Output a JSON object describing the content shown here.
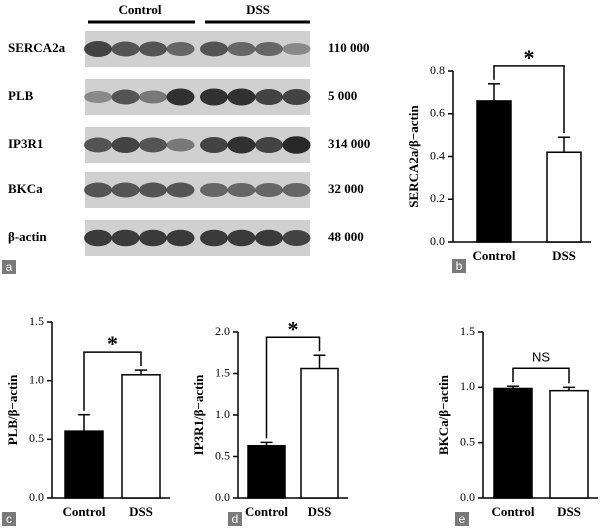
{
  "blot": {
    "panel": "a",
    "groups": [
      "Control",
      "DSS"
    ],
    "rows": [
      {
        "label": "SERCA2a",
        "weight": "110 000"
      },
      {
        "label": "PLB",
        "weight": "5 000"
      },
      {
        "label": "IP3R1",
        "weight": "314 000"
      },
      {
        "label": "BKCa",
        "weight": "32 000"
      },
      {
        "label": "β-actin",
        "weight": "48 000"
      }
    ]
  },
  "chart_data": [
    {
      "type": "bar",
      "panel": "b",
      "ylabel": "SERCA2a/β−actin",
      "annotation": "*",
      "categories": [
        "Control",
        "DSS"
      ],
      "values": [
        0.66,
        0.42
      ],
      "errors": [
        0.08,
        0.07
      ],
      "colors": [
        "#000000",
        "#ffffff"
      ],
      "ylim": [
        0,
        0.8
      ],
      "yticks": [
        {
          "value": 0,
          "label": "0.0"
        },
        0.2,
        0.4,
        0.6,
        0.8
      ]
    },
    {
      "type": "bar",
      "panel": "c",
      "ylabel": "PLB/β−actin",
      "annotation": "*",
      "categories": [
        "Control",
        "DSS"
      ],
      "values": [
        0.57,
        1.05
      ],
      "errors": [
        0.14,
        0.04
      ],
      "colors": [
        "#000000",
        "#ffffff"
      ],
      "ylim": [
        0,
        1.5
      ],
      "yticks": [
        {
          "value": 0,
          "label": "0.0"
        },
        0.5,
        {
          "value": 1,
          "label": "1.0"
        },
        1.5
      ]
    },
    {
      "type": "bar",
      "panel": "d",
      "ylabel": "IP3R1/β−actin",
      "annotation": "*",
      "categories": [
        "Control",
        "DSS"
      ],
      "values": [
        0.63,
        1.56
      ],
      "errors": [
        0.04,
        0.16
      ],
      "colors": [
        "#000000",
        "#ffffff"
      ],
      "ylim": [
        0,
        2
      ],
      "yticks": [
        {
          "value": 0,
          "label": "0.0"
        },
        0.5,
        {
          "value": 1,
          "label": "1.0"
        },
        1.5,
        {
          "value": 2,
          "label": "2.0"
        }
      ]
    },
    {
      "type": "bar",
      "panel": "e",
      "ylabel": "BKCa/β−actin",
      "annotation": "NS",
      "categories": [
        "Control",
        "DSS"
      ],
      "values": [
        0.99,
        0.97
      ],
      "errors": [
        0.02,
        0.03
      ],
      "colors": [
        "#000000",
        "#ffffff"
      ],
      "ylim": [
        0,
        1.5
      ],
      "yticks": [
        {
          "value": 0,
          "label": "0.0"
        },
        0.5,
        {
          "value": 1,
          "label": "1.0"
        },
        1.5
      ]
    }
  ]
}
